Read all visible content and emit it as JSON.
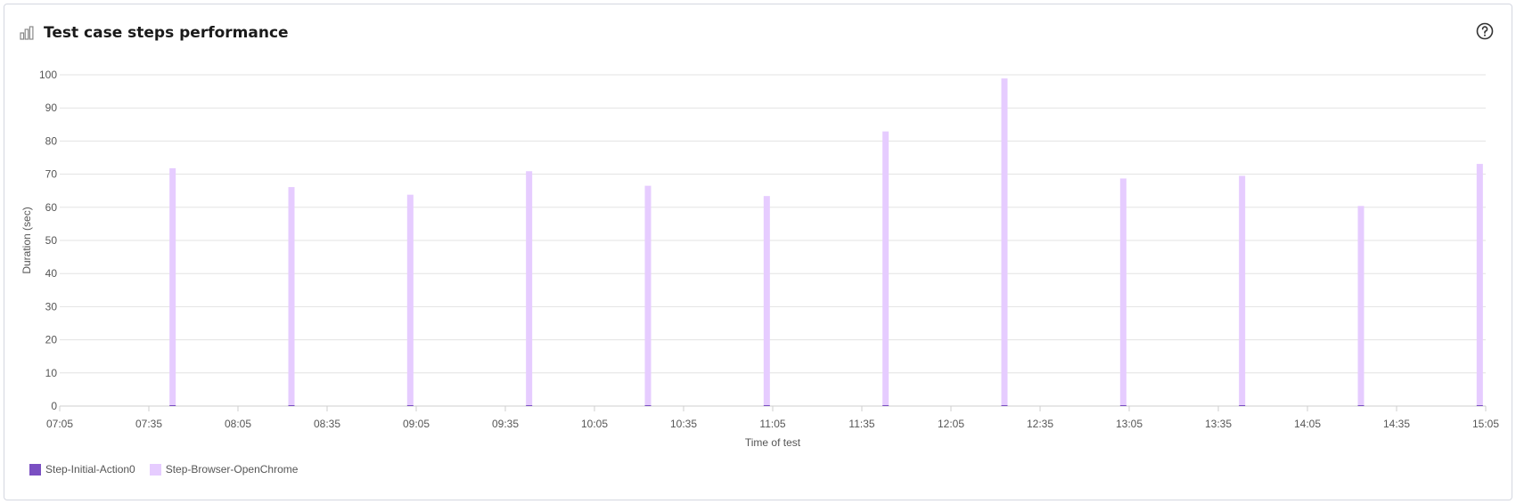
{
  "header": {
    "title": "Test case steps performance",
    "chart_icon": "bar-chart-icon",
    "help_icon": "help-circle-icon"
  },
  "colors": {
    "series_initial": "#7a4fc2",
    "series_browser": "#e6ccff",
    "grid": "#e3e3e3",
    "axis_text": "#555555"
  },
  "chart_data": {
    "type": "bar",
    "stacked": true,
    "title": "",
    "xlabel": "Time of test",
    "ylabel": "Duration (sec)",
    "ylim": [
      0,
      100
    ],
    "yticks": [
      0,
      10,
      20,
      30,
      40,
      50,
      60,
      70,
      80,
      90,
      100
    ],
    "xticks": [
      "07:05",
      "07:35",
      "08:05",
      "08:35",
      "09:05",
      "09:35",
      "10:05",
      "10:35",
      "11:05",
      "11:35",
      "12:05",
      "12:35",
      "13:05",
      "13:35",
      "14:05",
      "14:35",
      "15:05"
    ],
    "x": [
      "07:43",
      "08:23",
      "09:03",
      "09:43",
      "10:23",
      "11:03",
      "11:43",
      "12:23",
      "13:03",
      "13:43",
      "14:23",
      "15:03"
    ],
    "series": [
      {
        "name": "Step-Initial-Action0",
        "values": [
          0.3,
          0.3,
          0.3,
          0.3,
          0.3,
          0.3,
          0.3,
          0.3,
          0.3,
          0.3,
          0.3,
          0.3
        ]
      },
      {
        "name": "Step-Browser-OpenChrome",
        "values": [
          71.5,
          65.8,
          63.5,
          70.6,
          66.2,
          63.1,
          82.6,
          98.6,
          68.4,
          69.2,
          60.1,
          72.8
        ]
      }
    ],
    "grid": true,
    "legend_position": "bottom-left"
  }
}
